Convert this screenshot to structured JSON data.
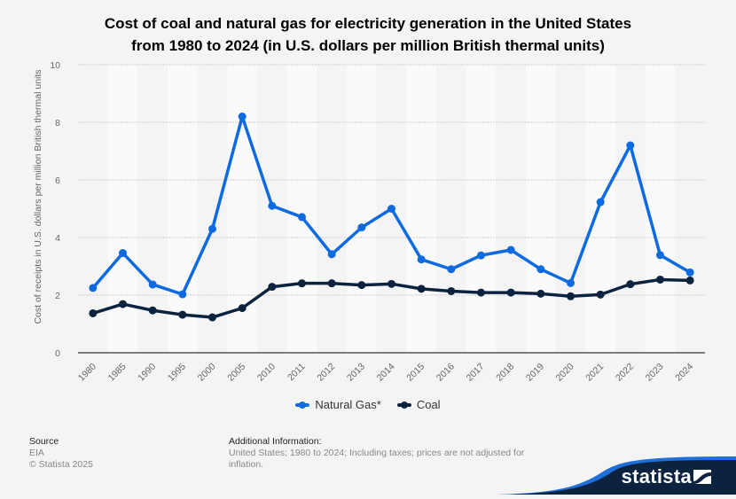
{
  "title_lines": [
    "Cost of coal and natural gas for electricity generation in the United States",
    "from 1980 to 2024 (in U.S. dollars per million British thermal units)"
  ],
  "chart_data": {
    "type": "line",
    "title": "Cost of coal and natural gas for electricity generation in the United States from 1980 to 2024 (in U.S. dollars per million British thermal units)",
    "xlabel": "",
    "ylabel": "Cost of receipts in U.S. dollars per million British thermal units",
    "ylim": [
      0,
      10
    ],
    "yticks": [
      0,
      2,
      4,
      6,
      8,
      10
    ],
    "grid": true,
    "legend_position": "bottom",
    "categories": [
      "1980",
      "1985",
      "1990",
      "1995",
      "2000",
      "2005",
      "2010",
      "2011",
      "2012",
      "2013",
      "2014",
      "2015",
      "2016",
      "2017",
      "2018",
      "2019",
      "2020",
      "2021",
      "2022",
      "2023",
      "2024"
    ],
    "series": [
      {
        "name": "Natural Gas*",
        "color": "#0e6ae0",
        "values": [
          2.25,
          3.46,
          2.37,
          2.03,
          4.3,
          8.2,
          5.1,
          4.71,
          3.42,
          4.35,
          5.0,
          3.24,
          2.9,
          3.38,
          3.57,
          2.9,
          2.42,
          5.23,
          7.2,
          3.39,
          2.79
        ]
      },
      {
        "name": "Coal",
        "color": "#0c2340",
        "values": [
          1.37,
          1.69,
          1.47,
          1.32,
          1.23,
          1.55,
          2.29,
          2.41,
          2.41,
          2.35,
          2.39,
          2.22,
          2.14,
          2.09,
          2.09,
          2.05,
          1.96,
          2.02,
          2.38,
          2.54,
          2.51
        ]
      }
    ]
  },
  "legend": {
    "items": [
      {
        "label": "Natural Gas*",
        "color": "#0e6ae0"
      },
      {
        "label": "Coal",
        "color": "#0c2340"
      }
    ]
  },
  "footer": {
    "source_heading": "Source",
    "source_name": "EIA",
    "copyright": "© Statista 2025",
    "info_heading": "Additional Information:",
    "info_text": "United States; 1980 to 2024; Including taxes; prices are not adjusted for inflation."
  },
  "brand": {
    "name": "statista",
    "navy": "#0c2340",
    "accent": "#1e6fd9"
  }
}
